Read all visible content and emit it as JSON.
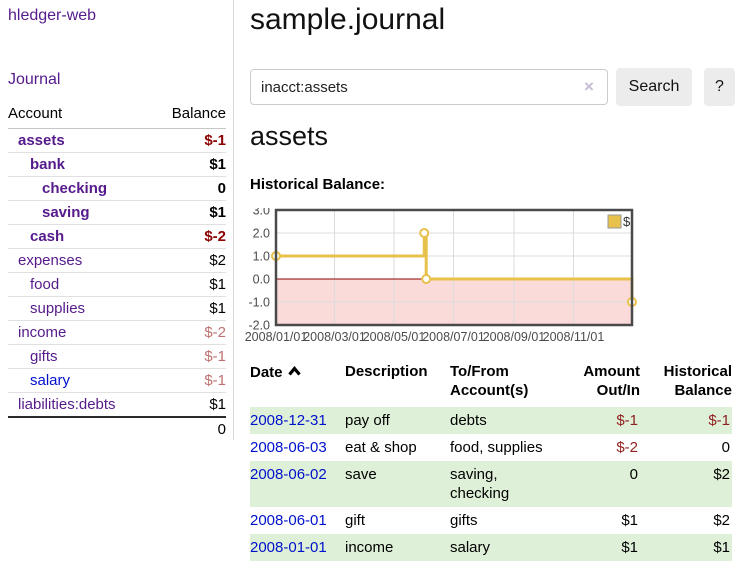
{
  "app": {
    "title": "hledger-web"
  },
  "sidebar": {
    "journal_label": "Journal",
    "accounts_table": {
      "account_header": "Account",
      "balance_header": "Balance",
      "rows": [
        {
          "name": "assets",
          "depth": 0,
          "bold": true,
          "balance": "$-1",
          "neg": "strong",
          "blue": false
        },
        {
          "name": "bank",
          "depth": 1,
          "bold": true,
          "balance": "$1",
          "neg": "none",
          "blue": false
        },
        {
          "name": "checking",
          "depth": 2,
          "bold": true,
          "balance": "0",
          "neg": "none",
          "blue": false
        },
        {
          "name": "saving",
          "depth": 2,
          "bold": true,
          "balance": "$1",
          "neg": "none",
          "blue": false
        },
        {
          "name": "cash",
          "depth": 1,
          "bold": true,
          "balance": "$-2",
          "neg": "strong",
          "blue": false
        },
        {
          "name": "expenses",
          "depth": 0,
          "bold": false,
          "balance": "$2",
          "neg": "none",
          "blue": false
        },
        {
          "name": "food",
          "depth": 1,
          "bold": false,
          "balance": "$1",
          "neg": "none",
          "blue": false
        },
        {
          "name": "supplies",
          "depth": 1,
          "bold": false,
          "balance": "$1",
          "neg": "none",
          "blue": false
        },
        {
          "name": "income",
          "depth": 0,
          "bold": false,
          "balance": "$-2",
          "neg": "muted",
          "blue": false
        },
        {
          "name": "gifts",
          "depth": 1,
          "bold": false,
          "balance": "$-1",
          "neg": "muted",
          "blue": false
        },
        {
          "name": "salary",
          "depth": 1,
          "bold": false,
          "balance": "$-1",
          "neg": "muted",
          "blue": true
        },
        {
          "name": "liabilities:debts",
          "depth": 0,
          "bold": false,
          "balance": "$1",
          "neg": "none",
          "blue": false
        }
      ],
      "total": "0"
    }
  },
  "main": {
    "title": "sample.journal",
    "search": {
      "value": "inacct:assets",
      "clear_icon": "×",
      "button_label": "Search",
      "help_label": "?"
    },
    "account_heading": "assets",
    "chart_title": "Historical Balance:",
    "register_table": {
      "headers": {
        "date": "Date",
        "description": "Description",
        "accounts": "To/From\nAccount(s)",
        "amount": "Amount\nOut/In",
        "balance": "Historical\nBalance"
      },
      "sort_icon": "chevron-up",
      "rows": [
        {
          "date": "2008-12-31",
          "description": "pay off",
          "accounts": "debts",
          "amount": "$-1",
          "amount_neg": true,
          "balance": "$-1",
          "balance_neg": true
        },
        {
          "date": "2008-06-03",
          "description": "eat & shop",
          "accounts": "food, supplies",
          "amount": "$-2",
          "amount_neg": true,
          "balance": "0",
          "balance_neg": false
        },
        {
          "date": "2008-06-02",
          "description": "save",
          "accounts": "saving,\nchecking",
          "amount": "0",
          "amount_neg": false,
          "balance": "$2",
          "balance_neg": false
        },
        {
          "date": "2008-06-01",
          "description": "gift",
          "accounts": "gifts",
          "amount": "$1",
          "amount_neg": false,
          "balance": "$2",
          "balance_neg": false
        },
        {
          "date": "2008-01-01",
          "description": "income",
          "accounts": "salary",
          "amount": "$1",
          "amount_neg": false,
          "balance": "$1",
          "balance_neg": false
        }
      ]
    }
  },
  "chart_data": {
    "type": "line",
    "step": true,
    "title": "Historical Balance:",
    "x_range": [
      "2008-01-01",
      "2008-12-31"
    ],
    "ylim": [
      -2,
      3
    ],
    "y_ticks": [
      {
        "v": 3,
        "label": "3.0"
      },
      {
        "v": 2,
        "label": "2.0"
      },
      {
        "v": 1,
        "label": "1.0"
      },
      {
        "v": 0,
        "label": "0.0"
      },
      {
        "v": -1,
        "label": "-1.0"
      },
      {
        "v": -2,
        "label": "-2.0"
      }
    ],
    "x_ticks": [
      {
        "date": "2008-01-01",
        "label": "2008/01/01"
      },
      {
        "date": "2008-03-01",
        "label": "2008/03/01"
      },
      {
        "date": "2008-05-01",
        "label": "2008/05/01"
      },
      {
        "date": "2008-07-01",
        "label": "2008/07/01"
      },
      {
        "date": "2008-09-01",
        "label": "2008/09/01"
      },
      {
        "date": "2008-11-01",
        "label": "2008/11/01"
      }
    ],
    "series": [
      {
        "name": "$",
        "color": "#e8c14a",
        "points": [
          {
            "date": "2008-01-01",
            "value": 1
          },
          {
            "date": "2008-06-01",
            "value": 2
          },
          {
            "date": "2008-06-03",
            "value": 0
          },
          {
            "date": "2008-12-31",
            "value": -1
          }
        ]
      }
    ],
    "legend": {
      "label": "$",
      "swatch_color": "#e8c14a",
      "position": "top-right"
    },
    "negative_region_fill": "#fbdada",
    "zero_line_color": "#8b0000",
    "grid_color": "#dcdcdc",
    "border_color": "#4a4a4a",
    "axis_label_color": "#4c4c4c",
    "grid": true
  }
}
